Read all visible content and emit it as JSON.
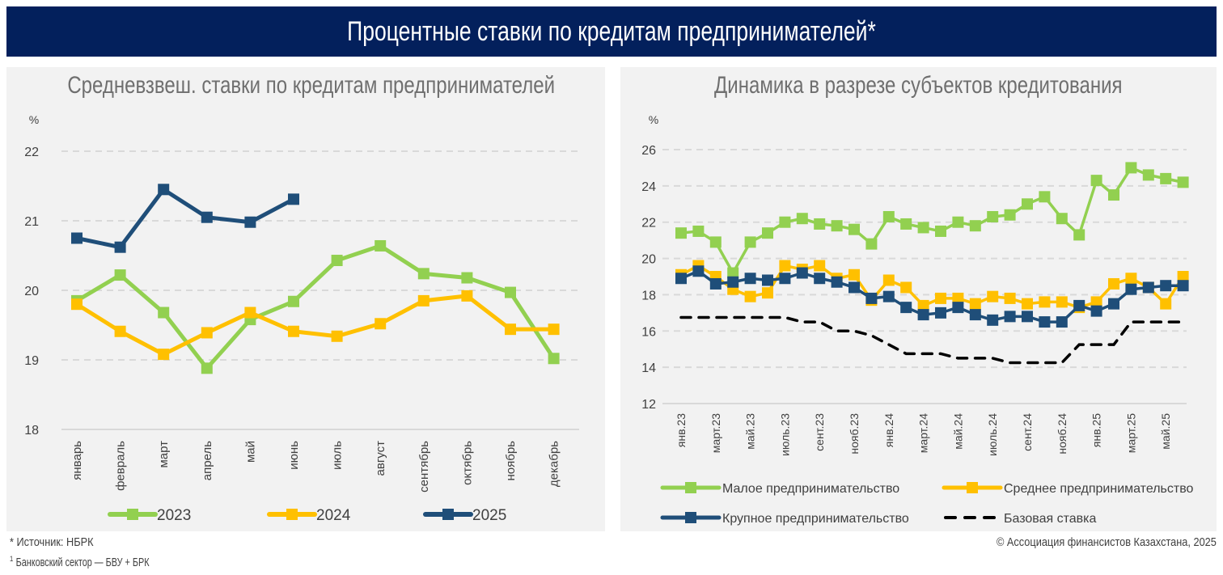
{
  "header": {
    "title": "Процентные ставки по кредитам предпринимателей*"
  },
  "colors": {
    "green": "#92D050",
    "yellow": "#FFC000",
    "navy": "#1F4E79",
    "black": "#000000",
    "banner": "#03205C",
    "panel": "#F2F2F2",
    "grid": "#D9D9D9"
  },
  "chart_data": [
    {
      "type": "line",
      "title": "Средневзвеш. ставки по кредитам предпринимателей",
      "ylabel": "%",
      "xlabel": "",
      "ylim": [
        18,
        22
      ],
      "yticks": [
        "18",
        "19",
        "20",
        "21",
        "22"
      ],
      "grid": true,
      "legend_position": "bottom",
      "categories": [
        "январь",
        "февраль",
        "март",
        "апрель",
        "май",
        "июнь",
        "июль",
        "август",
        "сентябрь",
        "октябрь",
        "ноябрь",
        "декабрь"
      ],
      "series": [
        {
          "name": "2023",
          "color": "#92D050",
          "values": [
            19.85,
            20.22,
            19.68,
            18.88,
            19.58,
            19.84,
            20.43,
            20.64,
            20.24,
            20.18,
            19.97,
            19.02
          ]
        },
        {
          "name": "2024",
          "color": "#FFC000",
          "values": [
            19.8,
            19.41,
            19.08,
            19.39,
            19.68,
            19.41,
            19.34,
            19.52,
            19.85,
            19.92,
            19.44,
            19.44
          ]
        },
        {
          "name": "2025",
          "color": "#1F4E79",
          "values": [
            20.75,
            20.62,
            21.45,
            21.05,
            20.98,
            21.31,
            null,
            null,
            null,
            null,
            null,
            null
          ]
        }
      ]
    },
    {
      "type": "line",
      "title": "Динамика в разрезе субъектов кредитования",
      "ylabel": "%",
      "xlabel": "",
      "ylim": [
        12,
        26
      ],
      "yticks": [
        "12",
        "14",
        "16",
        "18",
        "20",
        "22",
        "24",
        "26"
      ],
      "grid": true,
      "legend_position": "bottom",
      "x_tick_labels": [
        "янв.23",
        "март.23",
        "май.23",
        "июль.23",
        "сент.23",
        "нояб.23",
        "янв.24",
        "март.24",
        "май.24",
        "июль.24",
        "сент.24",
        "нояб.24",
        "янв.25",
        "март.25",
        "май.25"
      ],
      "x": [
        "янв.23",
        "фев.23",
        "март.23",
        "апр.23",
        "май.23",
        "июнь.23",
        "июль.23",
        "авг.23",
        "сент.23",
        "окт.23",
        "нояб.23",
        "дек.23",
        "янв.24",
        "фев.24",
        "март.24",
        "апр.24",
        "май.24",
        "июнь.24",
        "июль.24",
        "авг.24",
        "сент.24",
        "окт.24",
        "нояб.24",
        "дек.24",
        "янв.25",
        "фев.25",
        "март.25",
        "апр.25",
        "май.25",
        "июнь.25"
      ],
      "series": [
        {
          "name": "Малое предпринимательство",
          "color": "#92D050",
          "style": "solid-marker",
          "values": [
            21.4,
            21.5,
            20.9,
            19.2,
            20.9,
            21.4,
            22.0,
            22.2,
            21.9,
            21.8,
            21.6,
            20.8,
            22.3,
            21.9,
            21.7,
            21.5,
            22.0,
            21.8,
            22.3,
            22.4,
            23.0,
            23.4,
            22.2,
            21.3,
            24.3,
            23.5,
            25.0,
            24.6,
            24.4,
            24.2
          ]
        },
        {
          "name": "Среднее предпринимательство",
          "color": "#FFC000",
          "style": "solid-marker",
          "values": [
            19.1,
            19.6,
            19.0,
            18.3,
            17.9,
            18.1,
            19.6,
            19.4,
            19.6,
            18.9,
            19.1,
            17.7,
            18.8,
            18.4,
            17.4,
            17.8,
            17.8,
            17.5,
            17.9,
            17.8,
            17.5,
            17.6,
            17.6,
            17.3,
            17.6,
            18.6,
            18.9,
            18.4,
            17.5,
            19.0
          ]
        },
        {
          "name": "Крупное предпринимательство",
          "color": "#1F4E79",
          "style": "solid-marker",
          "values": [
            18.9,
            19.3,
            18.6,
            18.7,
            18.9,
            18.8,
            18.9,
            19.2,
            18.9,
            18.7,
            18.4,
            17.8,
            17.9,
            17.3,
            16.9,
            17.0,
            17.3,
            16.9,
            16.6,
            16.8,
            16.8,
            16.5,
            16.5,
            17.4,
            17.1,
            17.5,
            18.3,
            18.4,
            18.5,
            18.5
          ]
        },
        {
          "name": "Базовая ставка",
          "color": "#000000",
          "style": "dashed",
          "values": [
            16.75,
            16.75,
            16.75,
            16.75,
            16.75,
            16.75,
            16.75,
            16.5,
            16.5,
            16.0,
            16.0,
            15.75,
            15.25,
            14.75,
            14.75,
            14.75,
            14.5,
            14.5,
            14.5,
            14.25,
            14.25,
            14.25,
            14.25,
            15.25,
            15.25,
            15.25,
            16.5,
            16.5,
            16.5,
            16.5
          ]
        }
      ]
    }
  ],
  "footer": {
    "source": "* Источник: НБРК",
    "note_mark": "1",
    "note": "Банковский сектор — БВУ + БРК",
    "copyright": "© Ассоциация финансистов Казахстана, 2025"
  }
}
